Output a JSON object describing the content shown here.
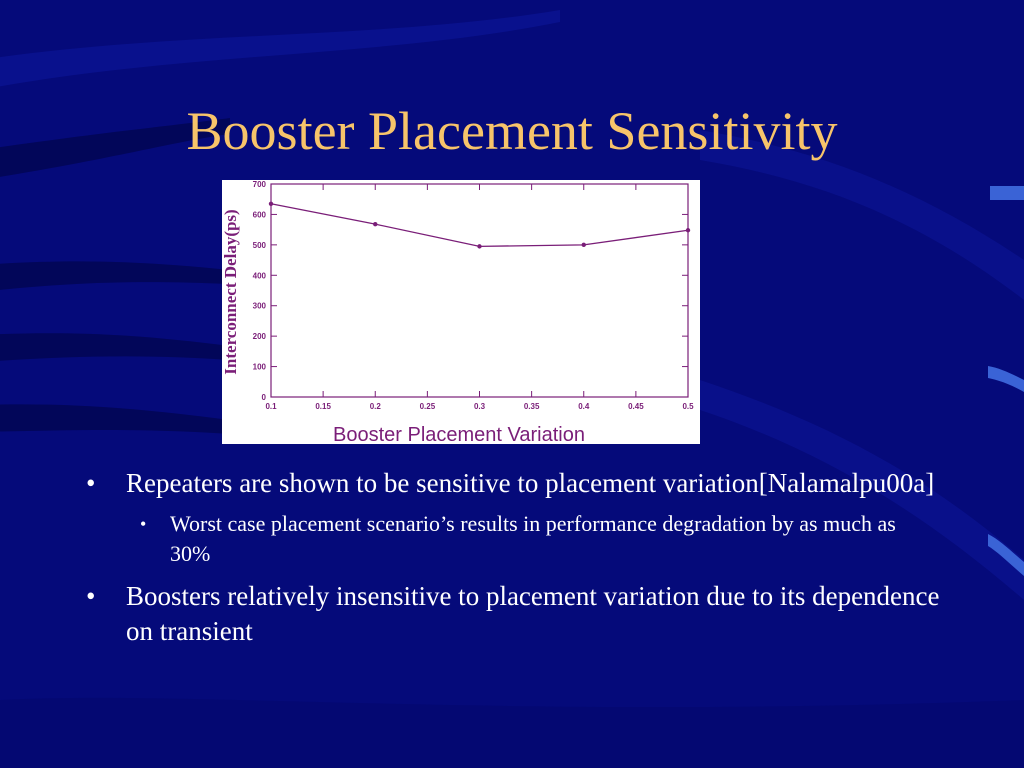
{
  "slide": {
    "title": "Booster Placement Sensitivity",
    "bullets": [
      {
        "level": 1,
        "text": "Repeaters are shown to be sensitive to placement variation[Nalamalpu00a]"
      },
      {
        "level": 2,
        "text": "Worst case placement scenario’s results in performance degradation by as much as 30%"
      },
      {
        "level": 1,
        "text": "Boosters relatively insensitive to placement variation due to  its dependence on transient"
      }
    ],
    "bullet_glyph": "•"
  },
  "colors": {
    "background": "#050a7a",
    "title": "#f7c46a",
    "text": "#ffffff",
    "plot": "#7a1e78",
    "swoosh": "#0e1aa8",
    "tab": "#3a63d6"
  },
  "chart_data": {
    "type": "line",
    "x": [
      0.1,
      0.2,
      0.3,
      0.4,
      0.5
    ],
    "series": [
      {
        "values": [
          635,
          568,
          495,
          500,
          548
        ]
      }
    ],
    "xticks": [
      "0.1",
      "0.15",
      "0.2",
      "0.25",
      "0.3",
      "0.35",
      "0.4",
      "0.45",
      "0.5"
    ],
    "yticks": [
      "0",
      "100",
      "200",
      "300",
      "400",
      "500",
      "600",
      "700"
    ],
    "xlabel": "Booster Placement Variation",
    "ylabel": "Interconnect Delay(ps)",
    "xlim": [
      0.1,
      0.5
    ],
    "ylim": [
      0,
      700
    ],
    "grid": false
  }
}
